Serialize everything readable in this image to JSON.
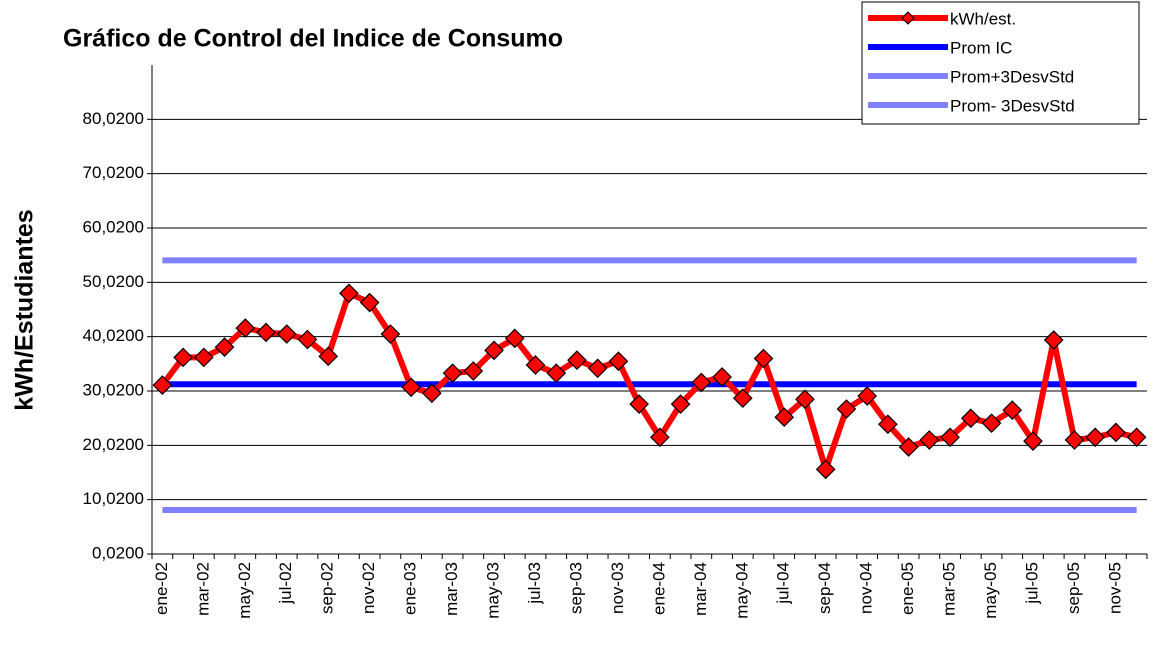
{
  "chart_data": {
    "type": "line",
    "title": "Gráfico de Control del Indice de Consumo",
    "y_label": "kWh/Estudiantes",
    "categories": [
      "ene-02",
      null,
      "mar-02",
      null,
      "may-02",
      null,
      "jul-02",
      null,
      "sep-02",
      null,
      "nov-02",
      null,
      "ene-03",
      null,
      "mar-03",
      null,
      "may-03",
      null,
      "jul-03",
      null,
      "sep-03",
      null,
      "nov-03",
      null,
      "ene-04",
      null,
      "mar-04",
      null,
      "may-04",
      null,
      "jul-04",
      null,
      "sep-04",
      null,
      "nov-04",
      null,
      "ene-05",
      null,
      "mar-05",
      null,
      "may-05",
      null,
      "jul-05",
      null,
      "sep-05",
      null,
      "nov-05",
      null
    ],
    "series": [
      {
        "name": "kWh/est.",
        "color": "#ff0000",
        "marker_color": "#ff0000",
        "values": [
          31.1,
          36.2,
          36.2,
          38.1,
          41.6,
          40.8,
          40.5,
          39.5,
          36.4,
          48.0,
          46.3,
          40.5,
          30.7,
          29.6,
          33.3,
          33.7,
          37.5,
          39.7,
          34.8,
          33.3,
          35.7,
          34.2,
          35.5,
          27.6,
          21.5,
          27.6,
          31.6,
          32.6,
          28.7,
          36.0,
          25.2,
          28.5,
          15.6,
          26.7,
          29.1,
          23.9,
          19.7,
          21.0,
          21.5,
          25.0,
          24.1,
          26.5,
          20.8,
          39.4,
          21.0,
          21.5,
          22.4,
          21.5
        ]
      },
      {
        "name": "Prom IC",
        "color": "#0000ff",
        "values": [
          31.27,
          31.27,
          31.27,
          31.27,
          31.27,
          31.27,
          31.27,
          31.27,
          31.27,
          31.27,
          31.27,
          31.27,
          31.27,
          31.27,
          31.27,
          31.27,
          31.27,
          31.27,
          31.27,
          31.27,
          31.27,
          31.27,
          31.27,
          31.27,
          31.27,
          31.27,
          31.27,
          31.27,
          31.27,
          31.27,
          31.27,
          31.27,
          31.27,
          31.27,
          31.27,
          31.27,
          31.27,
          31.27,
          31.27,
          31.27,
          31.27,
          31.27,
          31.27,
          31.27,
          31.27,
          31.27,
          31.27,
          31.27
        ]
      },
      {
        "name": "Prom+3DesvStd",
        "color": "#8080ff",
        "values": [
          54.06,
          54.06,
          54.06,
          54.06,
          54.06,
          54.06,
          54.06,
          54.06,
          54.06,
          54.06,
          54.06,
          54.06,
          54.06,
          54.06,
          54.06,
          54.06,
          54.06,
          54.06,
          54.06,
          54.06,
          54.06,
          54.06,
          54.06,
          54.06,
          54.06,
          54.06,
          54.06,
          54.06,
          54.06,
          54.06,
          54.06,
          54.06,
          54.06,
          54.06,
          54.06,
          54.06,
          54.06,
          54.06,
          54.06,
          54.06,
          54.06,
          54.06,
          54.06,
          54.06,
          54.06,
          54.06,
          54.06,
          54.06
        ]
      },
      {
        "name": "Prom- 3DesvStd",
        "color": "#8080ff",
        "values": [
          8.11,
          8.11,
          8.11,
          8.11,
          8.11,
          8.11,
          8.11,
          8.11,
          8.11,
          8.11,
          8.11,
          8.11,
          8.11,
          8.11,
          8.11,
          8.11,
          8.11,
          8.11,
          8.11,
          8.11,
          8.11,
          8.11,
          8.11,
          8.11,
          8.11,
          8.11,
          8.11,
          8.11,
          8.11,
          8.11,
          8.11,
          8.11,
          8.11,
          8.11,
          8.11,
          8.11,
          8.11,
          8.11,
          8.11,
          8.11,
          8.11,
          8.11,
          8.11,
          8.11,
          8.11,
          8.11,
          8.11,
          8.11
        ]
      }
    ],
    "ylim": [
      0.02,
      90.02
    ],
    "yticks": [
      {
        "value": 0.02,
        "label": "0,0200"
      },
      {
        "value": 10.02,
        "label": "10,0200"
      },
      {
        "value": 20.02,
        "label": "20,0200"
      },
      {
        "value": 30.02,
        "label": "30,0200"
      },
      {
        "value": 40.02,
        "label": "40,0200"
      },
      {
        "value": 50.02,
        "label": "50,0200"
      },
      {
        "value": 60.02,
        "label": "60,0200"
      },
      {
        "value": 70.02,
        "label": "70,0200"
      },
      {
        "value": 80.02,
        "label": "80,0200"
      }
    ],
    "grid": true,
    "legend": "top-right"
  }
}
